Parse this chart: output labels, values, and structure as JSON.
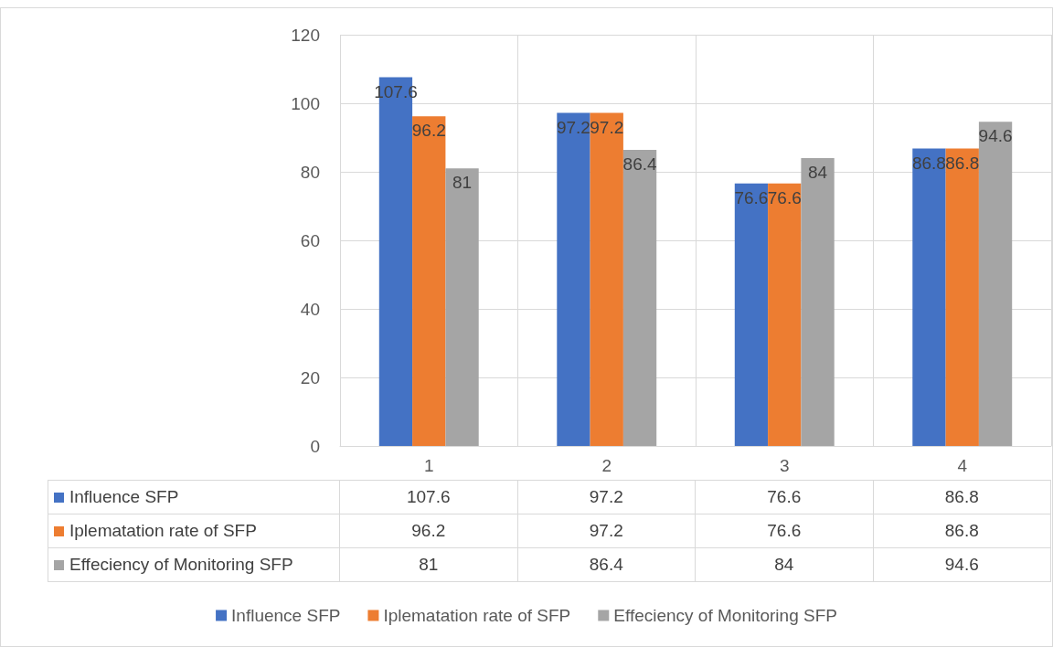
{
  "chart_data": {
    "type": "bar",
    "categories": [
      "1",
      "2",
      "3",
      "4"
    ],
    "series": [
      {
        "name": "Influence SFP",
        "color": "#4472c4",
        "values": [
          107.6,
          97.2,
          76.6,
          86.8
        ],
        "value_labels": [
          "107.6",
          "97.2",
          "76.6",
          "86.8"
        ]
      },
      {
        "name": "Iplematation rate of SFP",
        "color": "#ed7d31",
        "values": [
          96.2,
          97.2,
          76.6,
          86.8
        ],
        "value_labels": [
          "96.2",
          "97.2",
          "76.6",
          "86.8"
        ]
      },
      {
        "name": "Effeciency of Monitoring SFP",
        "color": "#a5a5a5",
        "values": [
          81,
          86.4,
          84,
          94.6
        ],
        "value_labels": [
          "81",
          "86.4",
          "84",
          "94.6"
        ]
      }
    ],
    "ylim": [
      0,
      120
    ],
    "yticks": [
      0,
      20,
      40,
      60,
      80,
      100,
      120
    ],
    "grid": true,
    "legend": "bottom",
    "data_labels": true,
    "annotations": [
      "107.6",
      "97.2",
      "76.6",
      "86.8",
      "96.2",
      "97.2",
      "76.6",
      "86.8",
      "81",
      "86.4",
      "84",
      "94.6"
    ]
  }
}
